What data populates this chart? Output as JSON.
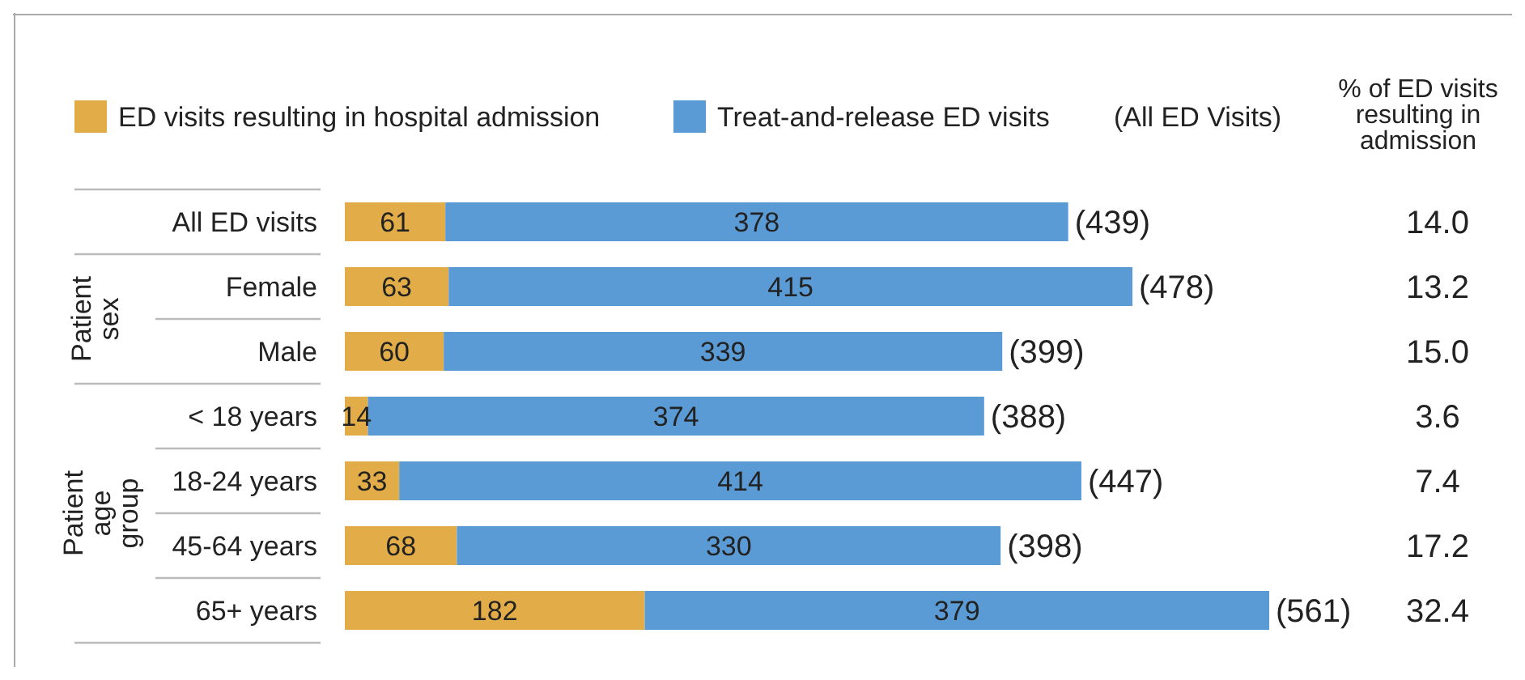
{
  "chart_data": {
    "type": "bar",
    "orientation": "horizontal",
    "stacked": true,
    "data_labels": true,
    "legend": "top left",
    "categories": [
      "All ED visits",
      "Female",
      "Male",
      "< 18 years",
      "18-24 years",
      "45-64 years",
      "65+ years"
    ],
    "series": [
      {
        "name": "ED visits resulting in hospital admission",
        "color": "#e2ad48",
        "values": [
          61,
          63,
          60,
          14,
          33,
          68,
          182
        ]
      },
      {
        "name": "Treat-and-release ED visits",
        "color": "#5b9bd5",
        "values": [
          378,
          415,
          339,
          374,
          414,
          330,
          379
        ]
      }
    ],
    "totals": [
      "(439)",
      "(478)",
      "(399)",
      "(388)",
      "(447)",
      "(398)",
      "(561)"
    ],
    "annotations": [
      "(All ED Visits)",
      "% of ED visits resulting in admission",
      "Patient sex",
      "Patient age group",
      "14.0",
      "13.2",
      "15.0",
      "3.6",
      "7.4",
      "17.2",
      "32.4"
    ]
  }
}
